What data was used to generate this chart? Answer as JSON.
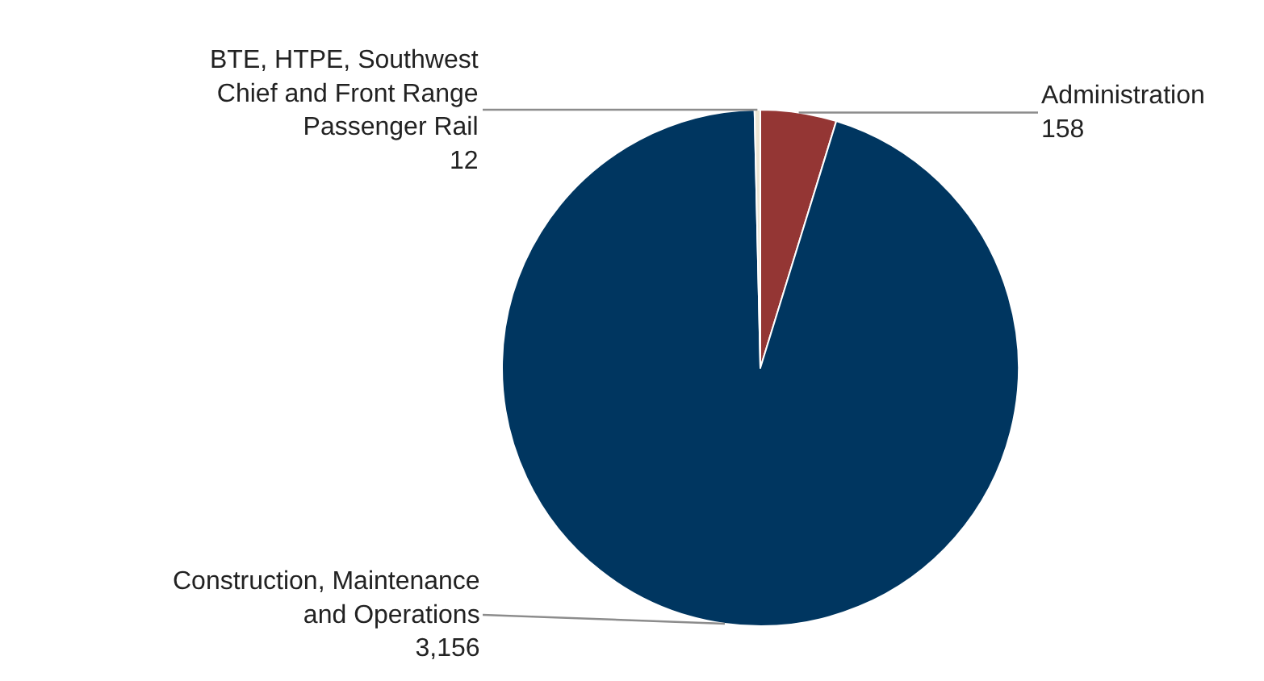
{
  "chart_data": {
    "type": "pie",
    "categories": [
      "Administration",
      "Construction, Maintenance and Operations",
      "BTE, HTPE, Southwest Chief and Front Range Passenger Rail"
    ],
    "values": [
      158,
      3156,
      12
    ],
    "value_labels": [
      "158",
      "3,156",
      "12"
    ],
    "colors": [
      "#943634",
      "#003660",
      "#ece6d4"
    ]
  }
}
